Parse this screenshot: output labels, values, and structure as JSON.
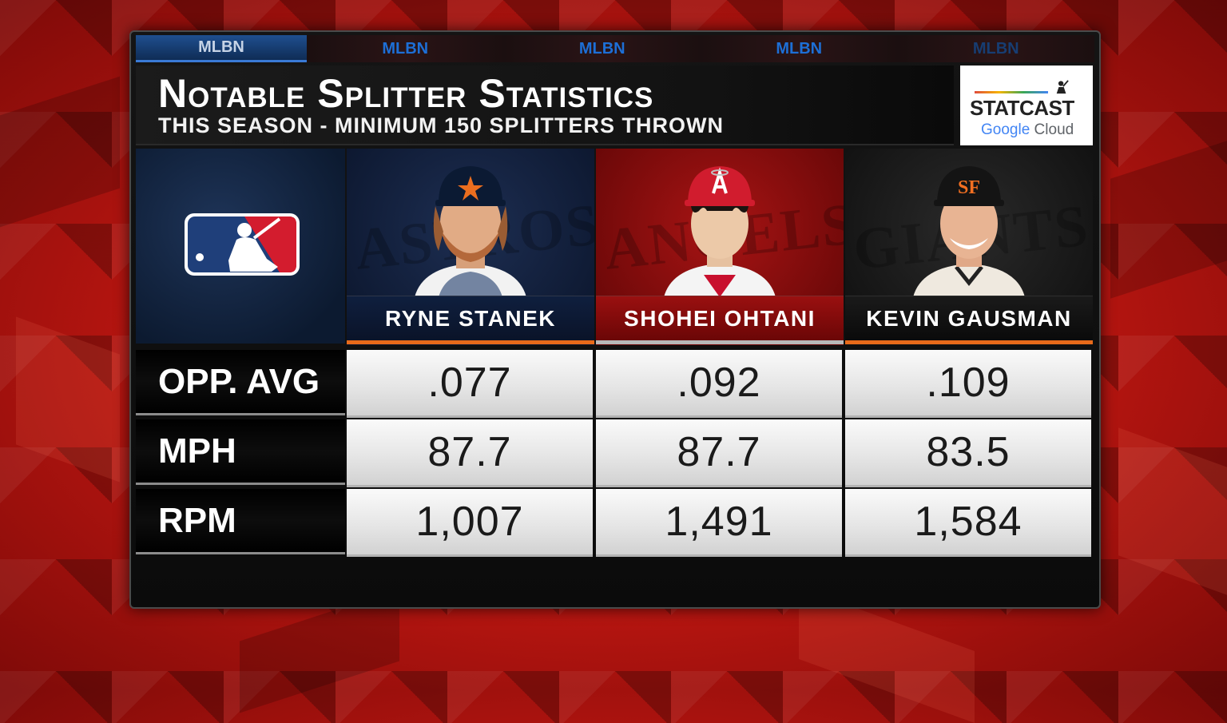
{
  "ticker": {
    "labels": [
      "MLBN",
      "MLBN",
      "MLBN",
      "MLBN",
      "MLBN"
    ]
  },
  "header": {
    "title": "Notable Splitter Statistics",
    "subtitle": "THIS SEASON - MINIMUM 150 SPLITTERS THROWN"
  },
  "sponsor": {
    "line1": "STATCAST",
    "line2_a": "Google",
    "line2_b": " Cloud"
  },
  "league": {
    "logo_icon": "mlb-logo-icon"
  },
  "players": [
    {
      "name": "RYNE STANEK",
      "team_watermark": "ASTROS",
      "portrait_icon": "player-portrait-icon",
      "team_color": "#0d1830"
    },
    {
      "name": "SHOHEI OHTANI",
      "team_watermark": "ANGELS",
      "portrait_icon": "player-portrait-icon",
      "team_color": "#9a1010"
    },
    {
      "name": "KEVIN GAUSMAN",
      "team_watermark": "GIANTS",
      "portrait_icon": "player-portrait-icon",
      "team_color": "#121212"
    }
  ],
  "stats": {
    "rows": [
      {
        "label": "OPP. AVG",
        "values": [
          ".077",
          ".092",
          ".109"
        ]
      },
      {
        "label": "MPH",
        "values": [
          "87.7",
          "87.7",
          "83.5"
        ]
      },
      {
        "label": "RPM",
        "values": [
          "1,007",
          "1,491",
          "1,584"
        ]
      }
    ]
  },
  "colors": {
    "accent_orange": "#e86a1a",
    "mlbn_blue": "#1d6fd6",
    "background_red": "#b51510"
  }
}
